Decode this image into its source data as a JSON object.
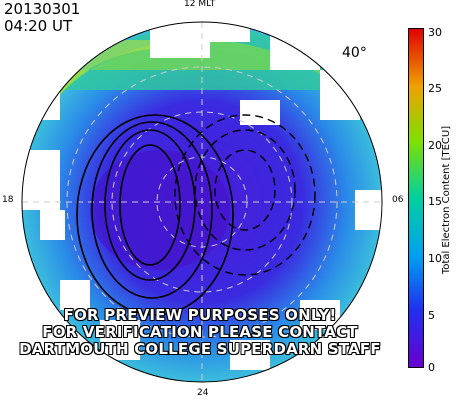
{
  "header": {
    "date": "20130301",
    "time": "04:20 UT"
  },
  "mlt_labels": {
    "top": "12 MLT",
    "left": "18",
    "right": "06",
    "bottom": "24"
  },
  "latitude_limit_label": "40°",
  "colorbar": {
    "label": "Total Electron Content [TECU]",
    "ticks": [
      "30",
      "25",
      "20",
      "15",
      "10",
      "5",
      "0"
    ],
    "min": 0,
    "max": 30
  },
  "watermark": {
    "lines": [
      "FOR PREVIEW PURPOSES ONLY!",
      "FOR VERIFICATION PLEASE CONTACT",
      "DARTMOUTH COLLEGE SUPERDARN STAFF"
    ]
  }
}
